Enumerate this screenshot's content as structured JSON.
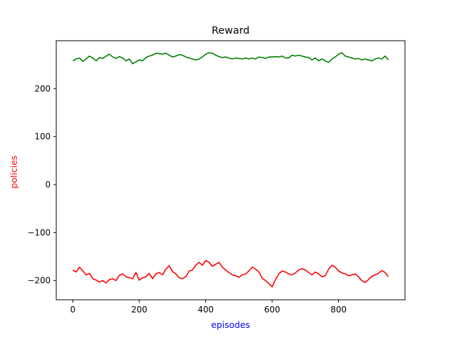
{
  "chart_data": {
    "type": "line",
    "title": "Reward",
    "xlabel": "episodes",
    "ylabel": "policies",
    "xlim": [
      -50,
      1000
    ],
    "ylim": [
      -240,
      300
    ],
    "xticks": [
      0,
      200,
      400,
      600,
      800
    ],
    "yticks": [
      -200,
      -100,
      0,
      100,
      200
    ],
    "grid": false,
    "legend": "none",
    "colors": {
      "title": "#000000",
      "xlabel": "#0000ff",
      "ylabel": "#ff0000",
      "axis": "#000000"
    },
    "series": [
      {
        "color": "#008000",
        "x": [
          0,
          10,
          20,
          30,
          40,
          50,
          60,
          70,
          80,
          90,
          100,
          110,
          120,
          130,
          140,
          150,
          160,
          170,
          180,
          190,
          200,
          210,
          220,
          230,
          240,
          250,
          260,
          270,
          280,
          290,
          300,
          310,
          320,
          330,
          340,
          350,
          360,
          370,
          380,
          390,
          400,
          410,
          420,
          430,
          440,
          450,
          460,
          470,
          480,
          490,
          500,
          510,
          520,
          530,
          540,
          550,
          560,
          570,
          580,
          590,
          600,
          610,
          620,
          630,
          640,
          650,
          660,
          670,
          680,
          690,
          700,
          710,
          720,
          730,
          740,
          750,
          760,
          770,
          780,
          790,
          800,
          810,
          820,
          830,
          840,
          850,
          860,
          870,
          880,
          890,
          900,
          910,
          920,
          930,
          940,
          950
        ],
        "y": [
          258,
          262,
          264,
          257,
          262,
          268,
          264,
          258,
          265,
          263,
          268,
          272,
          266,
          263,
          267,
          264,
          258,
          262,
          252,
          256,
          260,
          258,
          265,
          268,
          270,
          274,
          273,
          272,
          274,
          270,
          266,
          268,
          271,
          270,
          266,
          264,
          262,
          260,
          262,
          266,
          272,
          275,
          274,
          270,
          267,
          265,
          266,
          264,
          262,
          264,
          263,
          262,
          264,
          262,
          264,
          262,
          266,
          265,
          263,
          266,
          266,
          267,
          266,
          268,
          264,
          264,
          270,
          268,
          270,
          268,
          266,
          265,
          260,
          264,
          258,
          262,
          258,
          255,
          262,
          266,
          272,
          275,
          268,
          266,
          264,
          262,
          263,
          260,
          262,
          260,
          258,
          262,
          264,
          262,
          268,
          260
        ]
      },
      {
        "color": "#ff0000",
        "x": [
          0,
          10,
          20,
          30,
          40,
          50,
          60,
          70,
          80,
          90,
          100,
          110,
          120,
          130,
          140,
          150,
          160,
          170,
          180,
          190,
          200,
          210,
          220,
          230,
          240,
          250,
          260,
          270,
          280,
          290,
          300,
          310,
          320,
          330,
          340,
          350,
          360,
          370,
          380,
          390,
          400,
          410,
          420,
          430,
          440,
          450,
          460,
          470,
          480,
          490,
          500,
          510,
          520,
          530,
          540,
          550,
          560,
          570,
          580,
          590,
          600,
          610,
          620,
          630,
          640,
          650,
          660,
          670,
          680,
          690,
          700,
          710,
          720,
          730,
          740,
          750,
          760,
          770,
          780,
          790,
          800,
          810,
          820,
          830,
          840,
          850,
          860,
          870,
          880,
          890,
          900,
          910,
          920,
          930,
          940,
          950
        ],
        "y": [
          -178,
          -182,
          -172,
          -180,
          -188,
          -185,
          -196,
          -199,
          -203,
          -200,
          -205,
          -198,
          -196,
          -200,
          -189,
          -186,
          -192,
          -194,
          -196,
          -183,
          -199,
          -194,
          -192,
          -185,
          -196,
          -186,
          -183,
          -188,
          -176,
          -169,
          -181,
          -186,
          -194,
          -196,
          -192,
          -180,
          -178,
          -168,
          -162,
          -168,
          -158,
          -162,
          -170,
          -166,
          -162,
          -172,
          -178,
          -183,
          -188,
          -190,
          -193,
          -188,
          -186,
          -180,
          -172,
          -176,
          -182,
          -195,
          -200,
          -206,
          -213,
          -198,
          -186,
          -180,
          -182,
          -186,
          -188,
          -184,
          -178,
          -175,
          -178,
          -183,
          -188,
          -182,
          -186,
          -192,
          -190,
          -176,
          -168,
          -172,
          -180,
          -184,
          -186,
          -190,
          -188,
          -186,
          -192,
          -200,
          -204,
          -198,
          -191,
          -188,
          -185,
          -179,
          -183,
          -192
        ]
      }
    ]
  }
}
